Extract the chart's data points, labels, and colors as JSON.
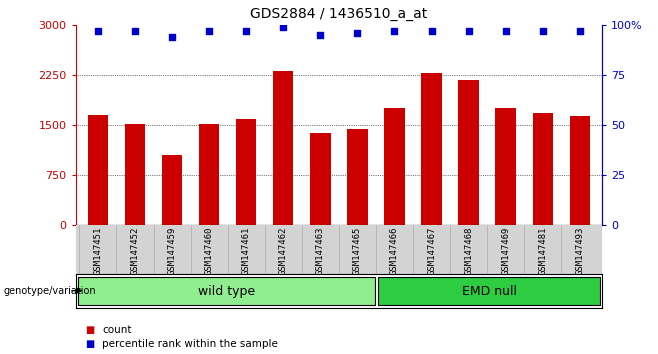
{
  "title": "GDS2884 / 1436510_a_at",
  "samples": [
    "GSM147451",
    "GSM147452",
    "GSM147459",
    "GSM147460",
    "GSM147461",
    "GSM147462",
    "GSM147463",
    "GSM147465",
    "GSM147466",
    "GSM147467",
    "GSM147468",
    "GSM147469",
    "GSM147481",
    "GSM147493"
  ],
  "counts": [
    1650,
    1510,
    1050,
    1510,
    1580,
    2310,
    1380,
    1440,
    1750,
    2270,
    2175,
    1750,
    1670,
    1630
  ],
  "percentiles": [
    97,
    97,
    94,
    97,
    97,
    99,
    95,
    96,
    97,
    97,
    97,
    97,
    97,
    97
  ],
  "bar_color": "#cc0000",
  "dot_color": "#0000cc",
  "groups": [
    {
      "label": "wild type",
      "color": "#90ee90",
      "start": 0,
      "end": 8
    },
    {
      "label": "EMD null",
      "color": "#2ecc40",
      "start": 8,
      "end": 14
    }
  ],
  "ylim_left": [
    0,
    3000
  ],
  "ylim_right": [
    0,
    100
  ],
  "yticks_left": [
    0,
    750,
    1500,
    2250,
    3000
  ],
  "yticks_right": [
    0,
    25,
    50,
    75,
    100
  ],
  "ytick_labels_left": [
    "0",
    "750",
    "1500",
    "2250",
    "3000"
  ],
  "ytick_labels_right": [
    "0",
    "25",
    "50",
    "75",
    "100%"
  ],
  "gridlines": [
    750,
    1500,
    2250
  ],
  "legend_count_color": "#cc0000",
  "legend_dot_color": "#0000cc",
  "xlabel_area_color": "#d3d3d3",
  "group_label_fontsize": 9,
  "title_fontsize": 10
}
